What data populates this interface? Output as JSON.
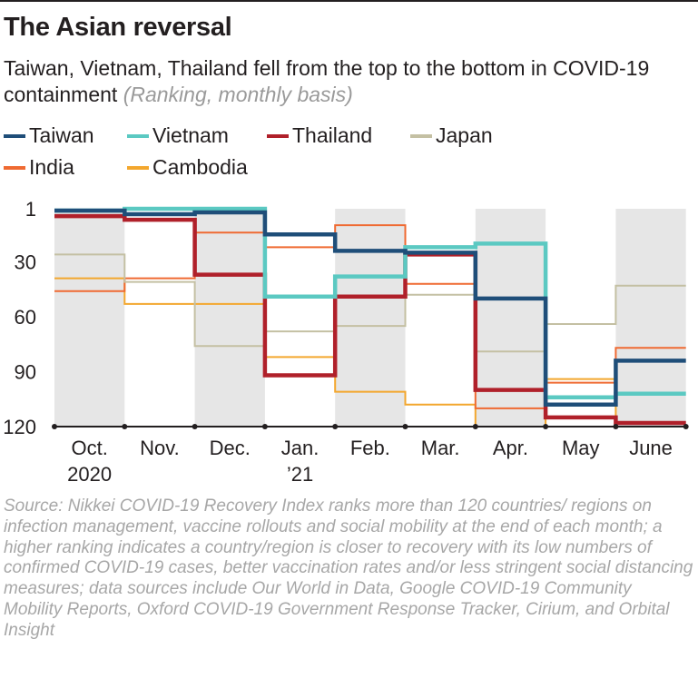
{
  "title": "The Asian reversal",
  "subtitle": {
    "text": "Taiwan, Vietnam, Thailand fell from the top to the bottom in COVID-19 containment",
    "note": "(Ranking, monthly basis)"
  },
  "source": "Source: Nikkei COVID-19 Recovery Index ranks more than 120 countries/ regions on infection management, vaccine rollouts and social mobility at the end of each month; a higher ranking indicates a country/region is closer to recovery with its low numbers of confirmed COVID-19 cases, better vaccination rates and/or less stringent social distancing measures; data sources include Our World in Data, Google COVID-19 Community Mobility Reports, Oxford COVID-19 Government Response Tracker, Cirium, and Orbital Insight",
  "chart_data": {
    "type": "line",
    "step": true,
    "categories": [
      "Oct. 2020",
      "Nov.",
      "Dec.",
      "Jan. ’21",
      "Feb.",
      "Mar.",
      "Apr.",
      "May",
      "June"
    ],
    "category_labels": [
      [
        "Oct.",
        "2020"
      ],
      [
        "Nov."
      ],
      [
        "Dec."
      ],
      [
        "Jan.",
        "’21"
      ],
      [
        "Feb."
      ],
      [
        "Mar."
      ],
      [
        "Apr."
      ],
      [
        "May"
      ],
      [
        "June"
      ]
    ],
    "y_axis": {
      "label": "",
      "ticks": [
        1,
        30,
        60,
        90,
        120
      ],
      "range": [
        1,
        120
      ],
      "inverted": true
    },
    "alternating_shading": true,
    "shade_color": "#e6e6e6",
    "legend_position": "top-left",
    "series": [
      {
        "name": "Taiwan",
        "color": "#1f4e79",
        "values": [
          2,
          4,
          3,
          15,
          24,
          25,
          50,
          108,
          84
        ]
      },
      {
        "name": "Vietnam",
        "color": "#5bc9c2",
        "values": [
          2,
          1,
          1,
          49,
          38,
          22,
          20,
          104,
          102
        ]
      },
      {
        "name": "Thailand",
        "color": "#b0202a",
        "values": [
          5,
          7,
          37,
          92,
          49,
          26,
          100,
          115,
          118
        ]
      },
      {
        "name": "Japan",
        "color": "#c4c0a3",
        "values": [
          26,
          41,
          76,
          68,
          65,
          48,
          79,
          64,
          43
        ]
      },
      {
        "name": "India",
        "color": "#ef6a32",
        "values": [
          46,
          39,
          14,
          22,
          10,
          42,
          110,
          96,
          77
        ]
      },
      {
        "name": "Cambodia",
        "color": "#f3a72e",
        "values": [
          39,
          53,
          53,
          82,
          101,
          108,
          120,
          94,
          120
        ]
      }
    ]
  }
}
